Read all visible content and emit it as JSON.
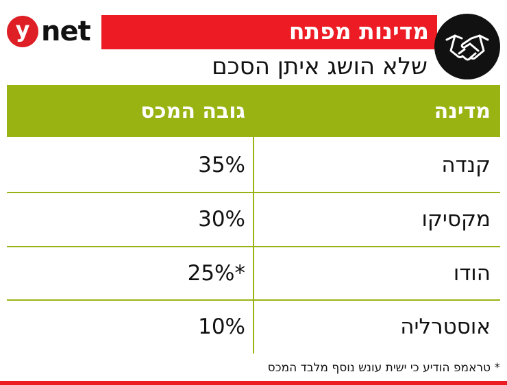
{
  "brand": {
    "logo_y": "y",
    "logo_net": "net",
    "accent": "#ed1c24",
    "header_green": "#99b313"
  },
  "header": {
    "title": "מדינות מפתח",
    "subtitle": "שלא הושג איתן הסכם",
    "badge_icon": "handshake-icon"
  },
  "chart_data": {
    "type": "table",
    "columns": [
      "מדינה",
      "גובה המכס"
    ],
    "rows": [
      {
        "country": "קנדה",
        "tariff": "35%"
      },
      {
        "country": "מקסיקו",
        "tariff": "30%"
      },
      {
        "country": "הודו",
        "tariff": "*25%"
      },
      {
        "country": "אוסטרליה",
        "tariff": "10%"
      }
    ]
  },
  "footnote": "* טראמפ הודיע כי ישית עונש נוסף מלבד המכס"
}
